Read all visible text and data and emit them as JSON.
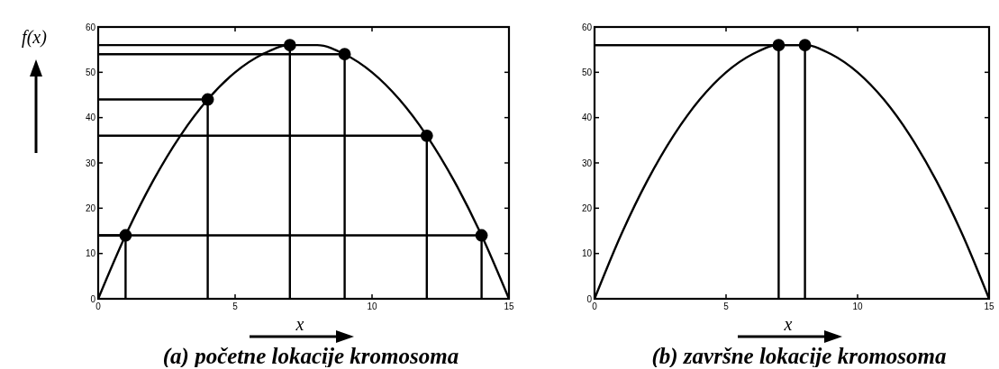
{
  "chart_data": [
    {
      "type": "line",
      "title": "(a) početne lokacije kromosoma",
      "xlabel": "x",
      "ylabel": "f(x)",
      "xlim": [
        0,
        15
      ],
      "ylim": [
        0,
        60
      ],
      "xticks": [
        0,
        5,
        10,
        15
      ],
      "yticks": [
        0,
        10,
        20,
        30,
        40,
        50,
        60
      ],
      "grid": false,
      "series": [
        {
          "color": "#000000",
          "x": [
            0,
            1,
            2,
            3,
            4,
            5,
            6,
            7,
            8,
            9,
            10,
            11,
            12,
            13,
            14,
            15
          ],
          "values": [
            0,
            14,
            26,
            36,
            44,
            50,
            54,
            56,
            56,
            54,
            50,
            44,
            36,
            26,
            14,
            0
          ]
        },
        {
          "color": "#000000",
          "x": [
            0,
            1,
            1
          ],
          "values": [
            14,
            14,
            0
          ]
        },
        {
          "color": "#000000",
          "x": [
            0,
            4,
            4
          ],
          "values": [
            44,
            44,
            0
          ]
        },
        {
          "color": "#000000",
          "x": [
            0,
            7,
            7
          ],
          "values": [
            56,
            56,
            0
          ]
        },
        {
          "color": "#000000",
          "x": [
            0,
            9,
            9
          ],
          "values": [
            54,
            54,
            0
          ]
        },
        {
          "color": "#000000",
          "x": [
            0,
            12,
            12
          ],
          "values": [
            36,
            36,
            0
          ]
        },
        {
          "color": "#000000",
          "x": [
            0,
            14,
            14
          ],
          "values": [
            14,
            14,
            0
          ]
        },
        {
          "type": "scatter",
          "color": "#000000",
          "marker": "circle",
          "x": [
            1,
            4,
            7,
            9,
            12,
            14
          ],
          "values": [
            14,
            44,
            56,
            54,
            36,
            14
          ]
        }
      ]
    },
    {
      "type": "line",
      "title": "(b) završne lokacije kromosoma",
      "xlabel": "x",
      "xlim": [
        0,
        15
      ],
      "ylim": [
        0,
        60
      ],
      "xticks": [
        0,
        5,
        10,
        15
      ],
      "yticks": [
        0,
        10,
        20,
        30,
        40,
        50,
        60
      ],
      "grid": false,
      "series": [
        {
          "color": "#000000",
          "x": [
            0,
            1,
            2,
            3,
            4,
            5,
            6,
            7,
            8,
            9,
            10,
            11,
            12,
            13,
            14,
            15
          ],
          "values": [
            0,
            14,
            26,
            36,
            44,
            50,
            54,
            56,
            56,
            54,
            50,
            44,
            36,
            26,
            14,
            0
          ]
        },
        {
          "color": "#000000",
          "x": [
            0,
            7,
            7
          ],
          "values": [
            56,
            56,
            0
          ]
        },
        {
          "color": "#000000",
          "x": [
            0,
            8,
            8
          ],
          "values": [
            56,
            56,
            0
          ]
        },
        {
          "type": "scatter",
          "color": "#000000",
          "marker": "circle",
          "x": [
            7,
            8
          ],
          "values": [
            56,
            56
          ]
        }
      ]
    }
  ]
}
